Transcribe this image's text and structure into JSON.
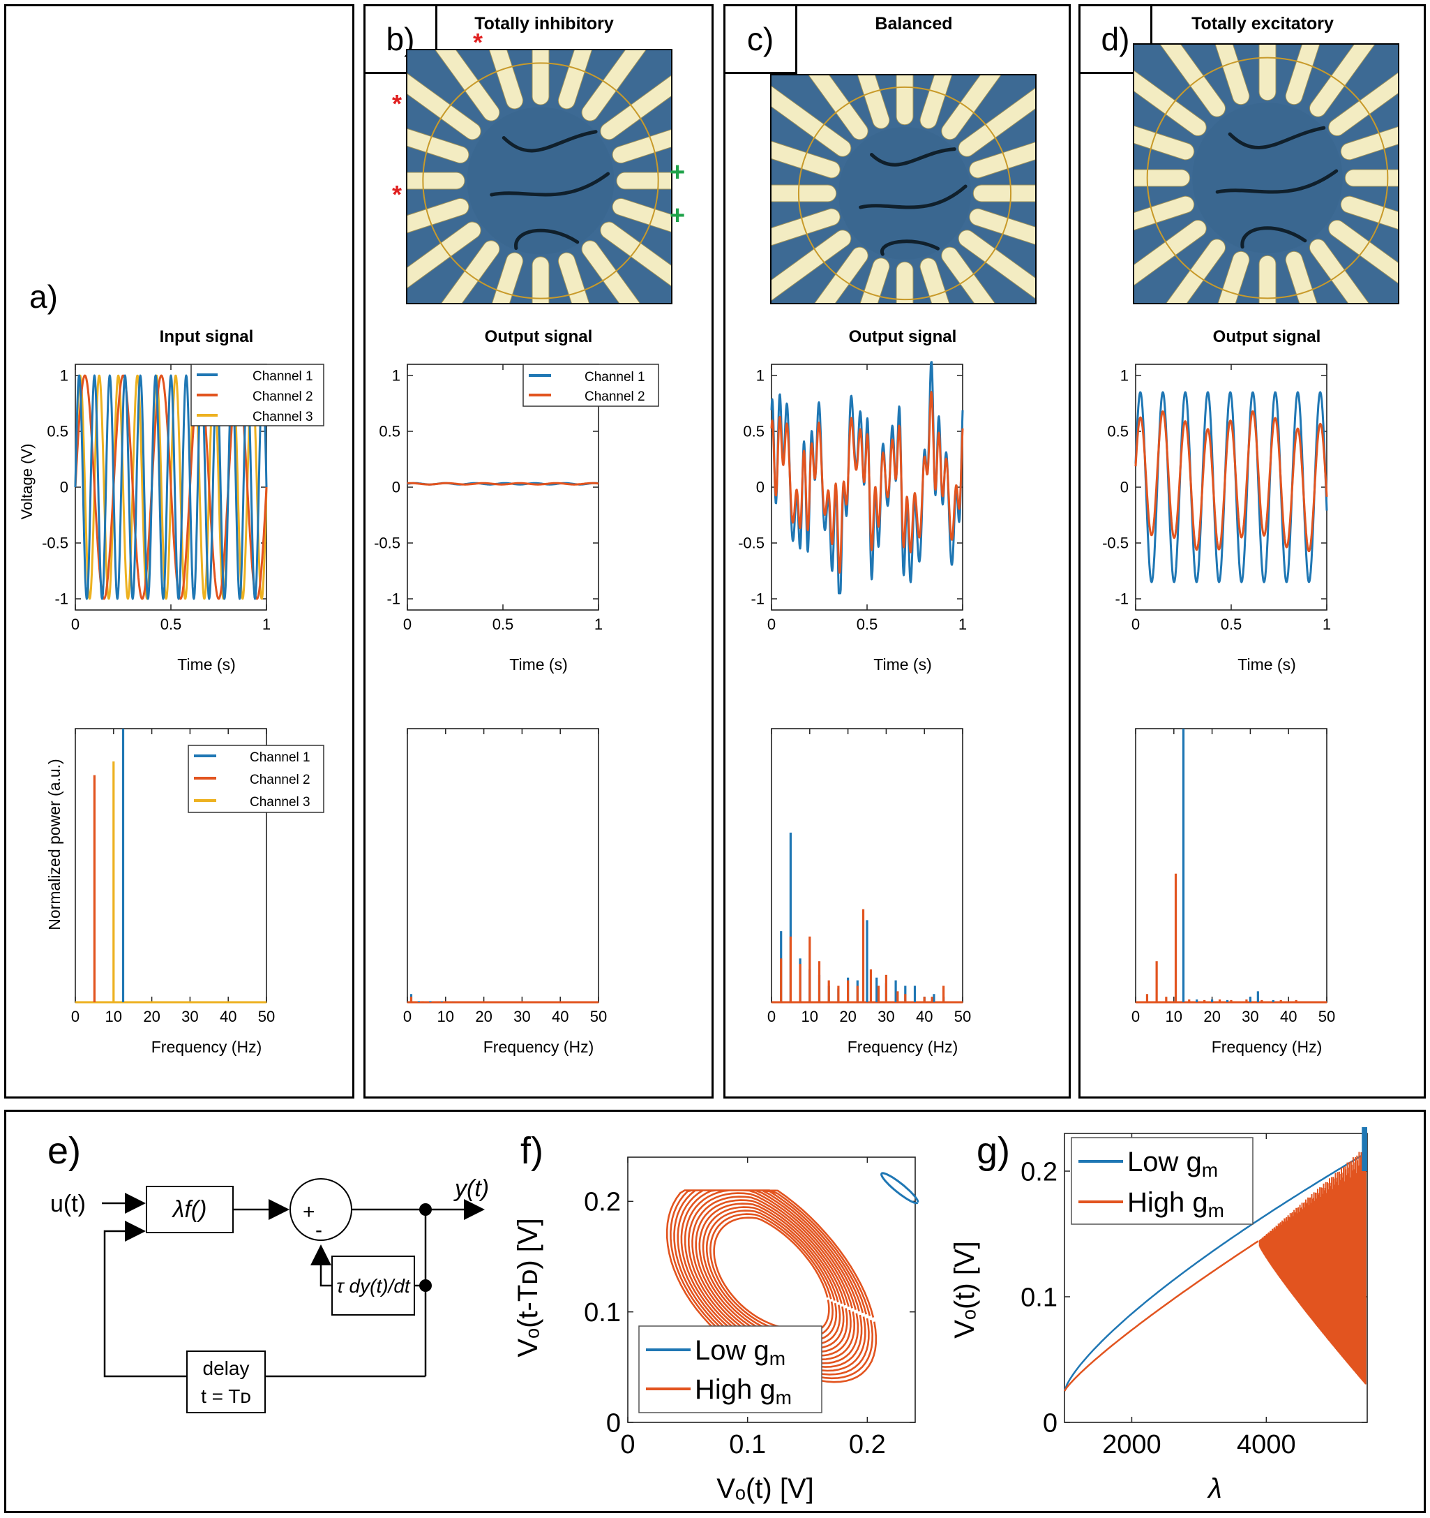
{
  "panel_labels": {
    "a": "a)",
    "b": "b)",
    "c": "c)",
    "d": "d)",
    "e": "e)",
    "f": "f)",
    "g": "g)"
  },
  "image_titles": {
    "b": "Totally inhibitory",
    "c": "Balanced",
    "d": "Totally excitatory"
  },
  "markers": {
    "star": "*",
    "plus": "+"
  },
  "colors": {
    "ch1": "#1f77b4",
    "ch2": "#e2541f",
    "ch3": "#edb120",
    "photo_bg": "#3d6a94",
    "electrode": "#f3ecc2"
  },
  "chart_data": [
    {
      "id": "a-time",
      "type": "line",
      "title": "Input signal",
      "xlabel": "Time (s)",
      "ylabel": "Voltage (V)",
      "xlim": [
        0,
        1
      ],
      "ylim": [
        -1.1,
        1.1
      ],
      "xticks": [
        "0",
        "0.5",
        "1"
      ],
      "yticks": [
        "-1",
        "-0.5",
        "0",
        "0.5",
        "1"
      ],
      "legend": "top-right",
      "series": [
        {
          "name": "Channel 1",
          "freq_hz": 12.5,
          "amplitude": 1
        },
        {
          "name": "Channel 2",
          "freq_hz": 5,
          "amplitude": 1
        },
        {
          "name": "Channel 3",
          "freq_hz": 10,
          "amplitude": 1
        }
      ]
    },
    {
      "id": "a-freq",
      "type": "bar",
      "xlabel": "Frequency (Hz)",
      "ylabel": "Normalized power (a.u.)",
      "xlim": [
        0,
        50
      ],
      "xticks": [
        "0",
        "10",
        "20",
        "30",
        "40",
        "50"
      ],
      "legend": "top-right",
      "series": [
        {
          "name": "Channel 1",
          "points": [
            [
              12.5,
              1.0
            ]
          ]
        },
        {
          "name": "Channel 2",
          "points": [
            [
              5,
              0.83
            ]
          ]
        },
        {
          "name": "Channel 3",
          "points": [
            [
              10,
              0.88
            ]
          ]
        }
      ]
    },
    {
      "id": "b-time",
      "type": "line",
      "title": "Output signal",
      "xlabel": "Time (s)",
      "xlim": [
        0,
        1
      ],
      "ylim": [
        -1.1,
        1.1
      ],
      "xticks": [
        "0",
        "0.5",
        "1"
      ],
      "yticks": [
        "-1",
        "-0.5",
        "0",
        "0.5",
        "1"
      ],
      "legend": "top-right",
      "series": [
        {
          "name": "Channel 1",
          "offset": 0.03
        },
        {
          "name": "Channel 2",
          "offset": 0.03
        }
      ]
    },
    {
      "id": "b-freq",
      "type": "bar",
      "xlabel": "Frequency (Hz)",
      "xlim": [
        0,
        50
      ],
      "xticks": [
        "0",
        "10",
        "20",
        "30",
        "40",
        "50"
      ],
      "series": [
        {
          "points": [
            [
              1,
              0.03
            ],
            [
              3,
              0.004
            ],
            [
              6,
              0.004
            ],
            [
              9,
              0.003
            ],
            [
              12,
              0.003
            ]
          ]
        },
        {
          "points": [
            [
              1,
              0.02
            ],
            [
              4,
              0.004
            ],
            [
              8,
              0.003
            ],
            [
              12,
              0.003
            ],
            [
              16,
              0.003
            ],
            [
              20,
              0.002
            ],
            [
              25,
              0.002
            ],
            [
              30,
              0.002
            ],
            [
              35,
              0.002
            ],
            [
              40,
              0.002
            ],
            [
              45,
              0.002
            ]
          ]
        }
      ]
    },
    {
      "id": "c-time",
      "type": "line",
      "title": "Output signal",
      "xlabel": "Time (s)",
      "xlim": [
        0,
        1
      ],
      "ylim": [
        -1.1,
        1.1
      ],
      "xticks": [
        "0",
        "0.5",
        "1"
      ],
      "yticks": [
        "-1",
        "-0.5",
        "0",
        "0.5",
        "1"
      ],
      "series": [
        {
          "amplitude": 0.95
        },
        {
          "amplitude": 0.65
        }
      ]
    },
    {
      "id": "c-freq",
      "type": "bar",
      "xlabel": "Frequency (Hz)",
      "xlim": [
        0,
        50
      ],
      "xticks": [
        "0",
        "10",
        "20",
        "30",
        "40",
        "50"
      ],
      "series": [
        {
          "points": [
            [
              2.5,
              0.26
            ],
            [
              5,
              0.62
            ],
            [
              7.5,
              0.16
            ],
            [
              10,
              0.12
            ],
            [
              12.5,
              0.1
            ],
            [
              15,
              0.06
            ],
            [
              17.5,
              0.05
            ],
            [
              20,
              0.09
            ],
            [
              22.5,
              0.08
            ],
            [
              25,
              0.3
            ],
            [
              27.5,
              0.09
            ],
            [
              30,
              0.07
            ],
            [
              32.5,
              0.08
            ],
            [
              35,
              0.06
            ],
            [
              37.5,
              0.06
            ],
            [
              40,
              0.02
            ],
            [
              42.5,
              0.03
            ],
            [
              45,
              0.02
            ]
          ]
        },
        {
          "points": [
            [
              2.5,
              0.16
            ],
            [
              5,
              0.24
            ],
            [
              7.5,
              0.14
            ],
            [
              10,
              0.24
            ],
            [
              12.5,
              0.15
            ],
            [
              15,
              0.08
            ],
            [
              17.5,
              0.06
            ],
            [
              20,
              0.08
            ],
            [
              22.5,
              0.06
            ],
            [
              24,
              0.34
            ],
            [
              26,
              0.12
            ],
            [
              28,
              0.06
            ],
            [
              30,
              0.1
            ],
            [
              33,
              0.04
            ],
            [
              35,
              0.03
            ],
            [
              40,
              0.02
            ],
            [
              42,
              0.02
            ],
            [
              45,
              0.06
            ]
          ]
        }
      ]
    },
    {
      "id": "d-time",
      "type": "line",
      "title": "Output signal",
      "xlabel": "Time (s)",
      "xlim": [
        0,
        1
      ],
      "ylim": [
        -1.1,
        1.1
      ],
      "xticks": [
        "0",
        "0.5",
        "1"
      ],
      "yticks": [
        "-1",
        "-0.5",
        "0",
        "0.5",
        "1"
      ],
      "series": [
        {
          "freq_hz": 8.5,
          "amplitude": 0.85
        },
        {
          "freq_hz": 8.5,
          "amplitude": 0.55
        }
      ]
    },
    {
      "id": "d-freq",
      "type": "bar",
      "xlabel": "Frequency (Hz)",
      "xlim": [
        0,
        50
      ],
      "xticks": [
        "0",
        "10",
        "20",
        "30",
        "40",
        "50"
      ],
      "series": [
        {
          "points": [
            [
              12.5,
              1.0
            ],
            [
              16,
              0.01
            ],
            [
              20,
              0.01
            ],
            [
              24,
              0.008
            ],
            [
              30,
              0.02
            ],
            [
              32,
              0.04
            ],
            [
              36,
              0.008
            ]
          ]
        },
        {
          "points": [
            [
              3,
              0.03
            ],
            [
              5.5,
              0.15
            ],
            [
              8,
              0.02
            ],
            [
              10.5,
              0.47
            ],
            [
              14,
              0.01
            ],
            [
              18,
              0.008
            ],
            [
              22,
              0.01
            ],
            [
              25,
              0.008
            ],
            [
              29,
              0.01
            ],
            [
              33,
              0.008
            ],
            [
              38,
              0.008
            ],
            [
              42,
              0.008
            ]
          ]
        }
      ]
    },
    {
      "id": "f",
      "type": "line",
      "xlabel": "Vₒ(t) [V]",
      "ylabel": "Vₒ(t-Tᴅ) [V]",
      "xlim": [
        0,
        0.24
      ],
      "ylim": [
        0,
        0.24
      ],
      "xticks": [
        "0",
        "0.1",
        "0.2"
      ],
      "yticks": [
        "0",
        "0.1",
        "0.2"
      ],
      "legend": "bottom-left",
      "series": [
        {
          "name": "Low gm"
        },
        {
          "name": "High gm"
        }
      ]
    },
    {
      "id": "g",
      "type": "line",
      "xlabel": "λ",
      "ylabel": "Vₒ(t) [V]",
      "xlim": [
        1000,
        5500
      ],
      "ylim": [
        0,
        0.23
      ],
      "xticks": [
        "2000",
        "4000"
      ],
      "yticks": [
        "0",
        "0.1",
        "0.2"
      ],
      "legend": "top-left",
      "series": [
        {
          "name": "Low gm"
        },
        {
          "name": "High gm"
        }
      ]
    }
  ],
  "diagram_e": {
    "input": "u(t)",
    "gain": "λf()",
    "plus": "+",
    "minus": "-",
    "output": "y(t)",
    "derivative": "τ dy(t)/dt",
    "delay_word": "delay",
    "delay_eq": "t = Tᴅ"
  },
  "legend_text": {
    "ch1": "Channel 1",
    "ch2": "Channel 2",
    "ch3": "Channel 3",
    "low": "Low g",
    "high": "High g",
    "sub": "m"
  },
  "axis_text": {
    "time": "Time (s)",
    "freq": "Frequency (Hz)",
    "voltage": "Voltage (V)",
    "power": "Normalized power (a.u.)"
  }
}
